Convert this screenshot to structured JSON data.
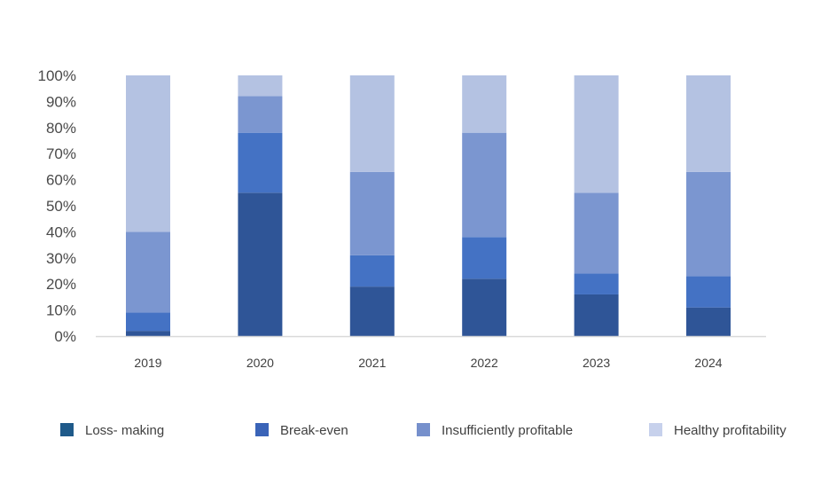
{
  "chart_data": {
    "type": "bar",
    "stacked": true,
    "categories": [
      "2019",
      "2020",
      "2021",
      "2022",
      "2023",
      "2024"
    ],
    "series": [
      {
        "name": "Loss- making",
        "color": "#2f5597",
        "values": [
          2,
          55,
          19,
          22,
          16,
          11
        ]
      },
      {
        "name": "Break-even",
        "color": "#4472c4",
        "values": [
          7,
          23,
          12,
          16,
          8,
          12
        ]
      },
      {
        "name": "Insufficiently profitable",
        "color": "#7b96d0",
        "values": [
          31,
          14,
          32,
          40,
          31,
          40
        ]
      },
      {
        "name": "Healthy profitability",
        "color": "#b4c2e2",
        "values": [
          60,
          8,
          37,
          22,
          45,
          37
        ]
      }
    ],
    "legend_colors": [
      "#1f5a8a",
      "#3a64b8",
      "#7690cc",
      "#c7d1ec"
    ],
    "yticks": [
      "0%",
      "10%",
      "20%",
      "30%",
      "40%",
      "50%",
      "60%",
      "70%",
      "80%",
      "90%",
      "100%"
    ],
    "ylim": [
      0,
      100
    ],
    "grid": false,
    "legend_position": "bottom",
    "title": "",
    "xlabel": "",
    "ylabel": ""
  }
}
